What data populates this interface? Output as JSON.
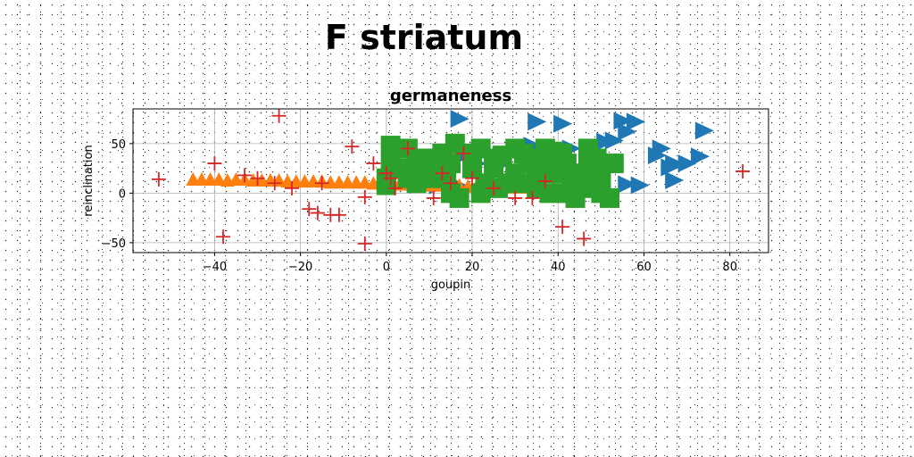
{
  "suptitle": "F striatum",
  "chart_data": {
    "type": "scatter",
    "title": "germaneness",
    "xlabel": "goupin",
    "ylabel": "reinclination",
    "xlim": [
      -59,
      89
    ],
    "ylim": [
      -60,
      85
    ],
    "xticks": [
      -40,
      -20,
      0,
      20,
      40,
      60,
      80
    ],
    "yticks": [
      -50,
      0,
      50
    ],
    "grid": true,
    "colors": {
      "blue": "#1f77b4",
      "orange": "#ff7f0e",
      "green": "#2ca02c",
      "red": "#d62728"
    },
    "series": [
      {
        "marker": "triangle-right",
        "color": "#1f77b4",
        "points": [
          [
            17,
            75
          ],
          [
            35,
            72
          ],
          [
            41,
            70
          ],
          [
            55,
            73
          ],
          [
            58,
            72
          ],
          [
            74,
            63
          ],
          [
            56,
            62
          ],
          [
            51,
            52
          ],
          [
            53,
            53
          ],
          [
            64,
            45
          ],
          [
            63,
            38
          ],
          [
            67,
            30
          ],
          [
            70,
            30
          ],
          [
            73,
            37
          ],
          [
            66,
            26
          ],
          [
            67,
            13
          ],
          [
            56,
            9
          ],
          [
            59,
            8
          ],
          [
            43,
            45
          ],
          [
            47,
            40
          ],
          [
            40,
            35
          ],
          [
            35,
            30
          ],
          [
            13,
            37
          ],
          [
            18,
            38
          ],
          [
            21,
            30
          ],
          [
            27,
            30
          ],
          [
            30,
            20
          ],
          [
            23,
            12
          ],
          [
            25,
            5
          ],
          [
            18,
            5
          ],
          [
            12,
            8
          ],
          [
            34,
            48
          ]
        ]
      },
      {
        "marker": "triangle-up",
        "color": "#ff7f0e",
        "points": [
          [
            -45,
            13
          ],
          [
            -43,
            13
          ],
          [
            -41,
            13
          ],
          [
            -39,
            13
          ],
          [
            -37,
            12
          ],
          [
            -35,
            13
          ],
          [
            -33,
            13
          ],
          [
            -31,
            12
          ],
          [
            -29,
            12
          ],
          [
            -27,
            12
          ],
          [
            -25,
            12
          ],
          [
            -23,
            11
          ],
          [
            -21,
            11
          ],
          [
            -19,
            11
          ],
          [
            -17,
            11
          ],
          [
            -15,
            11
          ],
          [
            -13,
            10
          ],
          [
            -11,
            10
          ],
          [
            -9,
            10
          ],
          [
            -7,
            10
          ],
          [
            -5,
            10
          ],
          [
            -3,
            9
          ],
          [
            -1,
            9
          ],
          [
            1,
            8
          ],
          [
            3,
            8
          ],
          [
            5,
            8
          ],
          [
            7,
            8
          ],
          [
            9,
            7
          ],
          [
            11,
            7
          ],
          [
            13,
            7
          ],
          [
            15,
            7
          ],
          [
            17,
            7
          ],
          [
            19,
            6
          ],
          [
            21,
            6
          ],
          [
            23,
            6
          ],
          [
            25,
            6
          ],
          [
            27,
            6
          ],
          [
            29,
            5
          ],
          [
            31,
            5
          ],
          [
            33,
            5
          ],
          [
            35,
            5
          ],
          [
            37,
            5
          ],
          [
            39,
            5
          ],
          [
            41,
            4
          ],
          [
            43,
            4
          ],
          [
            45,
            4
          ]
        ]
      },
      {
        "marker": "square",
        "color": "#2ca02c",
        "points": [
          [
            1,
            48
          ],
          [
            5,
            45
          ],
          [
            1,
            30
          ],
          [
            0,
            15
          ],
          [
            0,
            8
          ],
          [
            3,
            25
          ],
          [
            5,
            15
          ],
          [
            7,
            28
          ],
          [
            9,
            35
          ],
          [
            11,
            25
          ],
          [
            10,
            15
          ],
          [
            7,
            10
          ],
          [
            13,
            40
          ],
          [
            16,
            50
          ],
          [
            15,
            30
          ],
          [
            14,
            15
          ],
          [
            15,
            0
          ],
          [
            17,
            -5
          ],
          [
            20,
            40
          ],
          [
            22,
            45
          ],
          [
            20,
            25
          ],
          [
            23,
            10
          ],
          [
            22,
            0
          ],
          [
            25,
            35
          ],
          [
            27,
            38
          ],
          [
            25,
            25
          ],
          [
            28,
            10
          ],
          [
            26,
            5
          ],
          [
            30,
            45
          ],
          [
            32,
            40
          ],
          [
            33,
            30
          ],
          [
            30,
            20
          ],
          [
            35,
            15
          ],
          [
            32,
            10
          ],
          [
            35,
            35
          ],
          [
            37,
            30
          ],
          [
            38,
            20
          ],
          [
            35,
            5
          ],
          [
            38,
            0
          ],
          [
            37,
            45
          ],
          [
            39,
            42
          ],
          [
            41,
            40
          ],
          [
            42,
            30
          ],
          [
            40,
            20
          ],
          [
            43,
            15
          ],
          [
            42,
            0
          ],
          [
            44,
            -5
          ],
          [
            46,
            20
          ],
          [
            45,
            10
          ],
          [
            47,
            45
          ],
          [
            49,
            35
          ],
          [
            47,
            30
          ],
          [
            50,
            25
          ],
          [
            48,
            5
          ],
          [
            50,
            0
          ],
          [
            52,
            -5
          ],
          [
            50,
            15
          ],
          [
            53,
            30
          ]
        ]
      },
      {
        "marker": "plus",
        "color": "#d62728",
        "points": [
          [
            -25,
            78
          ],
          [
            -53,
            14
          ],
          [
            -40,
            30
          ],
          [
            -38,
            -44
          ],
          [
            -33,
            18
          ],
          [
            -30,
            15
          ],
          [
            -26,
            10
          ],
          [
            -22,
            5
          ],
          [
            -18,
            -16
          ],
          [
            -16,
            -20
          ],
          [
            -15,
            10
          ],
          [
            -13,
            -22
          ],
          [
            -11,
            -22
          ],
          [
            -8,
            47
          ],
          [
            -5,
            -51
          ],
          [
            -5,
            -4
          ],
          [
            -3,
            30
          ],
          [
            0,
            20
          ],
          [
            1,
            15
          ],
          [
            2,
            5
          ],
          [
            5,
            45
          ],
          [
            11,
            -5
          ],
          [
            13,
            20
          ],
          [
            15,
            10
          ],
          [
            18,
            40
          ],
          [
            20,
            15
          ],
          [
            25,
            5
          ],
          [
            30,
            -5
          ],
          [
            34,
            -5
          ],
          [
            37,
            12
          ],
          [
            41,
            -34
          ],
          [
            46,
            -46
          ],
          [
            83,
            22
          ]
        ]
      }
    ]
  }
}
